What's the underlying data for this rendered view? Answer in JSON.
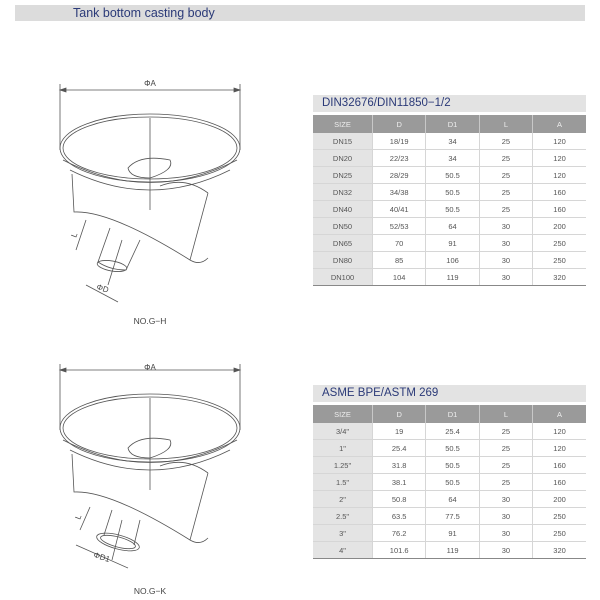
{
  "header": {
    "title": "Tank bottom casting body"
  },
  "drawings": [
    {
      "label": "NO.G−H",
      "dim_a": "ΦA",
      "dim_outlet": "ΦD",
      "dim_l": "L"
    },
    {
      "label": "NO.G−K",
      "dim_a": "ΦA",
      "dim_outlet": "ΦD1",
      "dim_l": "L"
    }
  ],
  "tables": [
    {
      "title": "DIN32676/DIN11850−1/2",
      "columns": [
        "SIZE",
        "D",
        "D1",
        "L",
        "A"
      ],
      "rows": [
        [
          "DN15",
          "18/19",
          "34",
          "25",
          "120"
        ],
        [
          "DN20",
          "22/23",
          "34",
          "25",
          "120"
        ],
        [
          "DN25",
          "28/29",
          "50.5",
          "25",
          "120"
        ],
        [
          "DN32",
          "34/38",
          "50.5",
          "25",
          "160"
        ],
        [
          "DN40",
          "40/41",
          "50.5",
          "25",
          "160"
        ],
        [
          "DN50",
          "52/53",
          "64",
          "30",
          "200"
        ],
        [
          "DN65",
          "70",
          "91",
          "30",
          "250"
        ],
        [
          "DN80",
          "85",
          "106",
          "30",
          "250"
        ],
        [
          "DN100",
          "104",
          "119",
          "30",
          "320"
        ]
      ]
    },
    {
      "title": "ASME BPE/ASTM 269",
      "columns": [
        "SIZE",
        "D",
        "D1",
        "L",
        "A"
      ],
      "rows": [
        [
          "3/4\"",
          "19",
          "25.4",
          "25",
          "120"
        ],
        [
          "1\"",
          "25.4",
          "50.5",
          "25",
          "120"
        ],
        [
          "1.25\"",
          "31.8",
          "50.5",
          "25",
          "160"
        ],
        [
          "1.5\"",
          "38.1",
          "50.5",
          "25",
          "160"
        ],
        [
          "2\"",
          "50.8",
          "64",
          "30",
          "200"
        ],
        [
          "2.5\"",
          "63.5",
          "77.5",
          "30",
          "250"
        ],
        [
          "3\"",
          "76.2",
          "91",
          "30",
          "250"
        ],
        [
          "4\"",
          "101.6",
          "119",
          "30",
          "320"
        ]
      ]
    }
  ]
}
